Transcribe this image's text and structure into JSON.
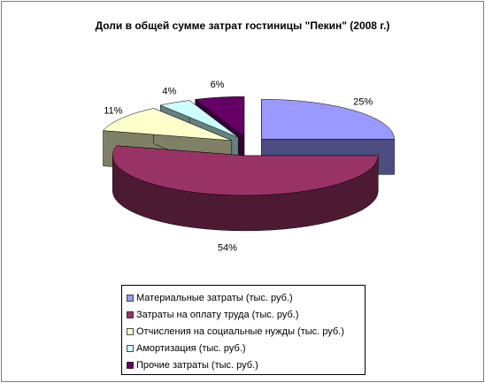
{
  "chart_data": {
    "type": "pie3d",
    "title": "Доли в общей сумме затрат гостиницы \"Пекин\" (2008 г.)",
    "categories": [
      "Материальные затраты (тыс. руб.)",
      "Затраты на оплату труда (тыс. руб.)",
      "Отчисления на социальные нужды (тыс. руб.)",
      "Амортизация (тыс. руб.)",
      "Прочие затраты (тыс. руб.)"
    ],
    "values": [
      25,
      54,
      11,
      4,
      6
    ],
    "value_labels": [
      "25%",
      "54%",
      "11%",
      "4%",
      "6%"
    ],
    "colors": [
      "#9999FF",
      "#993366",
      "#FFFFCC",
      "#CCFFFF",
      "#660066"
    ],
    "legend": "bottom"
  }
}
